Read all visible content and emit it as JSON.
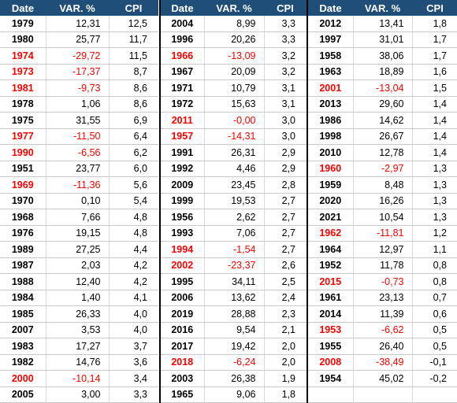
{
  "headers": {
    "date": "Date",
    "var": "VAR. %",
    "cpi": "CPI"
  },
  "tables": [
    {
      "rows": [
        {
          "date": "1979",
          "var": "12,31",
          "cpi": "12,5",
          "neg": false
        },
        {
          "date": "1980",
          "var": "25,77",
          "cpi": "11,7",
          "neg": false
        },
        {
          "date": "1974",
          "var": "-29,72",
          "cpi": "11,5",
          "neg": true
        },
        {
          "date": "1973",
          "var": "-17,37",
          "cpi": "8,7",
          "neg": true
        },
        {
          "date": "1981",
          "var": "-9,73",
          "cpi": "8,6",
          "neg": true
        },
        {
          "date": "1978",
          "var": "1,06",
          "cpi": "8,6",
          "neg": false
        },
        {
          "date": "1975",
          "var": "31,55",
          "cpi": "6,9",
          "neg": false
        },
        {
          "date": "1977",
          "var": "-11,50",
          "cpi": "6,4",
          "neg": true
        },
        {
          "date": "1990",
          "var": "-6,56",
          "cpi": "6,2",
          "neg": true
        },
        {
          "date": "1951",
          "var": "23,77",
          "cpi": "6,0",
          "neg": false
        },
        {
          "date": "1969",
          "var": "-11,36",
          "cpi": "5,6",
          "neg": true
        },
        {
          "date": "1970",
          "var": "0,10",
          "cpi": "5,4",
          "neg": false
        },
        {
          "date": "1968",
          "var": "7,66",
          "cpi": "4,8",
          "neg": false
        },
        {
          "date": "1976",
          "var": "19,15",
          "cpi": "4,8",
          "neg": false
        },
        {
          "date": "1989",
          "var": "27,25",
          "cpi": "4,4",
          "neg": false
        },
        {
          "date": "1987",
          "var": "2,03",
          "cpi": "4,2",
          "neg": false
        },
        {
          "date": "1988",
          "var": "12,40",
          "cpi": "4,2",
          "neg": false
        },
        {
          "date": "1984",
          "var": "1,40",
          "cpi": "4,1",
          "neg": false
        },
        {
          "date": "1985",
          "var": "26,33",
          "cpi": "4,0",
          "neg": false
        },
        {
          "date": "2007",
          "var": "3,53",
          "cpi": "4,0",
          "neg": false
        },
        {
          "date": "1983",
          "var": "17,27",
          "cpi": "3,7",
          "neg": false
        },
        {
          "date": "1982",
          "var": "14,76",
          "cpi": "3,6",
          "neg": false
        },
        {
          "date": "2000",
          "var": "-10,14",
          "cpi": "3,4",
          "neg": true
        },
        {
          "date": "2005",
          "var": "3,00",
          "cpi": "3,3",
          "neg": false
        }
      ]
    },
    {
      "rows": [
        {
          "date": "2004",
          "var": "8,99",
          "cpi": "3,3",
          "neg": false
        },
        {
          "date": "1996",
          "var": "20,26",
          "cpi": "3,3",
          "neg": false
        },
        {
          "date": "1966",
          "var": "-13,09",
          "cpi": "3,2",
          "neg": true
        },
        {
          "date": "1967",
          "var": "20,09",
          "cpi": "3,2",
          "neg": false
        },
        {
          "date": "1971",
          "var": "10,79",
          "cpi": "3,1",
          "neg": false
        },
        {
          "date": "1972",
          "var": "15,63",
          "cpi": "3,1",
          "neg": false
        },
        {
          "date": "2011",
          "var": "-0,00",
          "cpi": "3,0",
          "neg": true
        },
        {
          "date": "1957",
          "var": "-14,31",
          "cpi": "3,0",
          "neg": true
        },
        {
          "date": "1991",
          "var": "26,31",
          "cpi": "2,9",
          "neg": false
        },
        {
          "date": "1992",
          "var": "4,46",
          "cpi": "2,9",
          "neg": false
        },
        {
          "date": "2009",
          "var": "23,45",
          "cpi": "2,8",
          "neg": false
        },
        {
          "date": "1999",
          "var": "19,53",
          "cpi": "2,7",
          "neg": false
        },
        {
          "date": "1956",
          "var": "2,62",
          "cpi": "2,7",
          "neg": false
        },
        {
          "date": "1993",
          "var": "7,06",
          "cpi": "2,7",
          "neg": false
        },
        {
          "date": "1994",
          "var": "-1,54",
          "cpi": "2,7",
          "neg": true
        },
        {
          "date": "2002",
          "var": "-23,37",
          "cpi": "2,6",
          "neg": true
        },
        {
          "date": "1995",
          "var": "34,11",
          "cpi": "2,5",
          "neg": false
        },
        {
          "date": "2006",
          "var": "13,62",
          "cpi": "2,4",
          "neg": false
        },
        {
          "date": "2019",
          "var": "28,88",
          "cpi": "2,3",
          "neg": false
        },
        {
          "date": "2016",
          "var": "9,54",
          "cpi": "2,1",
          "neg": false
        },
        {
          "date": "2017",
          "var": "19,42",
          "cpi": "2,0",
          "neg": false
        },
        {
          "date": "2018",
          "var": "-6,24",
          "cpi": "2,0",
          "neg": true
        },
        {
          "date": "2003",
          "var": "26,38",
          "cpi": "1,9",
          "neg": false
        },
        {
          "date": "1965",
          "var": "9,06",
          "cpi": "1,8",
          "neg": false
        }
      ]
    },
    {
      "rows": [
        {
          "date": "2012",
          "var": "13,41",
          "cpi": "1,8",
          "neg": false
        },
        {
          "date": "1997",
          "var": "31,01",
          "cpi": "1,7",
          "neg": false
        },
        {
          "date": "1958",
          "var": "38,06",
          "cpi": "1,7",
          "neg": false
        },
        {
          "date": "1963",
          "var": "18,89",
          "cpi": "1,6",
          "neg": false
        },
        {
          "date": "2001",
          "var": "-13,04",
          "cpi": "1,5",
          "neg": true
        },
        {
          "date": "2013",
          "var": "29,60",
          "cpi": "1,4",
          "neg": false
        },
        {
          "date": "1986",
          "var": "14,62",
          "cpi": "1,4",
          "neg": false
        },
        {
          "date": "1998",
          "var": "26,67",
          "cpi": "1,4",
          "neg": false
        },
        {
          "date": "2010",
          "var": "12,78",
          "cpi": "1,4",
          "neg": false
        },
        {
          "date": "1960",
          "var": "-2,97",
          "cpi": "1,3",
          "neg": true
        },
        {
          "date": "1959",
          "var": "8,48",
          "cpi": "1,3",
          "neg": false
        },
        {
          "date": "2020",
          "var": "16,26",
          "cpi": "1,3",
          "neg": false
        },
        {
          "date": "2021",
          "var": "10,54",
          "cpi": "1,3",
          "neg": false
        },
        {
          "date": "1962",
          "var": "-11,81",
          "cpi": "1,2",
          "neg": true
        },
        {
          "date": "1964",
          "var": "12,97",
          "cpi": "1,1",
          "neg": false
        },
        {
          "date": "1952",
          "var": "11,78",
          "cpi": "0,8",
          "neg": false
        },
        {
          "date": "2015",
          "var": "-0,73",
          "cpi": "0,8",
          "neg": true
        },
        {
          "date": "1961",
          "var": "23,13",
          "cpi": "0,7",
          "neg": false
        },
        {
          "date": "2014",
          "var": "11,39",
          "cpi": "0,6",
          "neg": false
        },
        {
          "date": "1953",
          "var": "-6,62",
          "cpi": "0,5",
          "neg": true
        },
        {
          "date": "1955",
          "var": "26,40",
          "cpi": "0,5",
          "neg": false
        },
        {
          "date": "2008",
          "var": "-38,49",
          "cpi": "-0,1",
          "neg": true
        },
        {
          "date": "1954",
          "var": "45,02",
          "cpi": "-0,2",
          "neg": false
        },
        {
          "date": "",
          "var": "",
          "cpi": "",
          "neg": false
        }
      ]
    }
  ]
}
